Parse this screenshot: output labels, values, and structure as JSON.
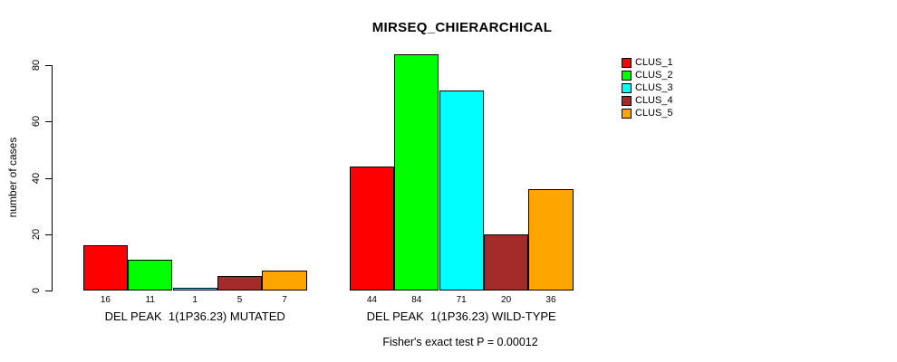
{
  "title": "MIRSEQ_CHIERARCHICAL",
  "footer": "Fisher's exact test P = 0.00012",
  "colors": {
    "background": "#FFFFFF",
    "axis": "#000000",
    "text": "#000000"
  },
  "chart_data": {
    "type": "bar",
    "title": "MIRSEQ_CHIERARCHICAL",
    "xlabel": "",
    "ylabel": "number of cases",
    "ylim": [
      0,
      84
    ],
    "yticks": [
      0,
      20,
      40,
      60,
      80
    ],
    "grid": false,
    "legend_position": "right",
    "bar_value_labels_shown": true,
    "series": [
      {
        "name": "CLUS_1",
        "color": "#FF0000"
      },
      {
        "name": "CLUS_2",
        "color": "#00FF00"
      },
      {
        "name": "CLUS_3",
        "color": "#00FFFF"
      },
      {
        "name": "CLUS_4",
        "color": "#A52A2A"
      },
      {
        "name": "CLUS_5",
        "color": "#FFA500"
      }
    ],
    "groups": [
      {
        "label": "DEL PEAK  1(1P36.23) MUTATED",
        "values": [
          16,
          11,
          1,
          5,
          7
        ]
      },
      {
        "label": "DEL PEAK  1(1P36.23) WILD-TYPE",
        "values": [
          44,
          84,
          71,
          20,
          36
        ]
      }
    ],
    "annotation": "Fisher's exact test P = 0.00012"
  }
}
